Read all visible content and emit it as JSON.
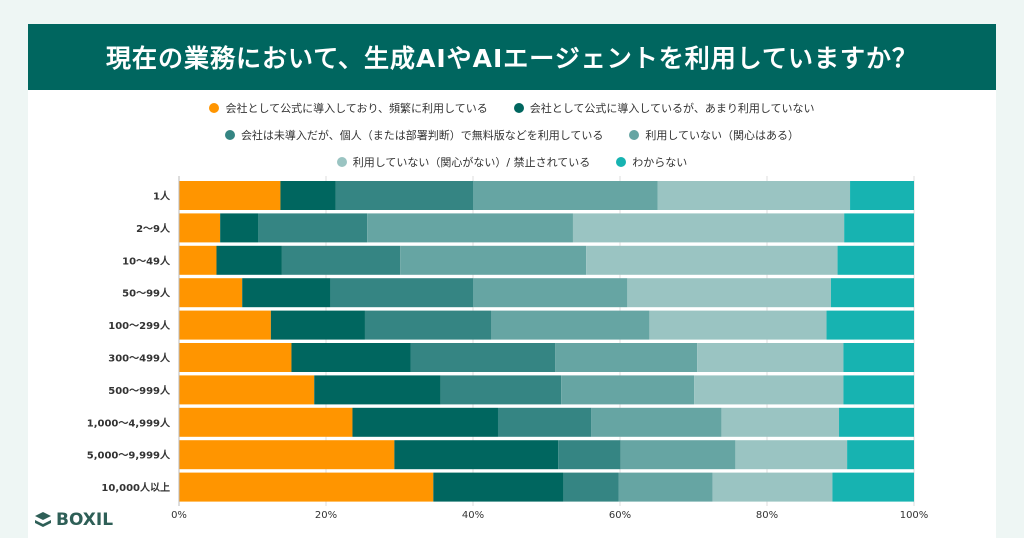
{
  "chart_data": {
    "type": "bar",
    "orientation": "horizontal",
    "stacked": true,
    "title": "現在の業務において、生成AIやAIエージェントを利用していますか？",
    "categories": [
      "1人",
      "2〜9人",
      "10〜49人",
      "50〜99人",
      "100〜299人",
      "300〜499人",
      "500〜999人",
      "1,000〜4,999人",
      "5,000〜9,999人",
      "10,000人以上"
    ],
    "series": [
      {
        "name": "会社として公式に導入しており、頻繁に利用している",
        "color": "#ff9500",
        "values": [
          13.8,
          5.6,
          5.1,
          8.6,
          12.5,
          15.3,
          18.4,
          23.6,
          29.3,
          34.6
        ]
      },
      {
        "name": "会社として公式に導入しているが、あまり利用していない",
        "color": "#00665f",
        "values": [
          7.5,
          5.2,
          8.9,
          12.0,
          12.8,
          16.2,
          17.2,
          19.8,
          22.3,
          17.7
        ]
      },
      {
        "name": "会社は未導入だが、個人（または部署判断）で無料版などを利用している",
        "color": "#358583",
        "values": [
          18.7,
          14.8,
          16.1,
          19.4,
          17.2,
          19.7,
          16.4,
          12.7,
          8.5,
          7.5
        ]
      },
      {
        "name": "利用していない（関心はある）",
        "color": "#66a5a3",
        "values": [
          25.1,
          28.0,
          25.3,
          21.0,
          21.5,
          19.3,
          18.1,
          17.7,
          15.6,
          12.8
        ]
      },
      {
        "name": "利用していない（関心がない）/ 禁止されている",
        "color": "#9ac4c2",
        "values": [
          26.2,
          36.9,
          34.2,
          27.7,
          24.1,
          19.9,
          20.3,
          16.0,
          15.2,
          16.3
        ]
      },
      {
        "name": "わからない",
        "color": "#17b3b1",
        "values": [
          8.7,
          9.5,
          10.4,
          11.3,
          11.9,
          9.6,
          9.6,
          10.2,
          9.1,
          11.1
        ]
      }
    ],
    "xlim": [
      0,
      100
    ],
    "xticks": [
      "0%",
      "20%",
      "40%",
      "60%",
      "80%",
      "100%"
    ],
    "grid": true,
    "legend": "top"
  },
  "logo": "BOXIL"
}
